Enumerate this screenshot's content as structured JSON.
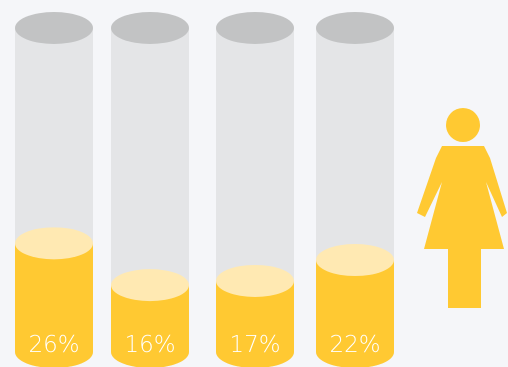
{
  "chart_data": {
    "type": "bar",
    "categories": [
      "",
      "",
      "",
      ""
    ],
    "values": [
      26,
      16,
      17,
      22
    ],
    "value_labels": [
      "26%",
      "16%",
      "17%",
      "22%"
    ],
    "unit": "%",
    "title": "",
    "xlabel": "",
    "ylabel": "",
    "ylim": [
      0,
      100
    ],
    "grid": false,
    "legend": "none",
    "icon": "female-figure-icon",
    "colors": {
      "background": "#f5f6f9",
      "tube_body": "#e4e5e7",
      "tube_top": "#c2c3c4",
      "fill": "#ffc932",
      "fill_top": "#ffe9b2",
      "label": "#ffffff",
      "icon": "#ffc932"
    }
  }
}
